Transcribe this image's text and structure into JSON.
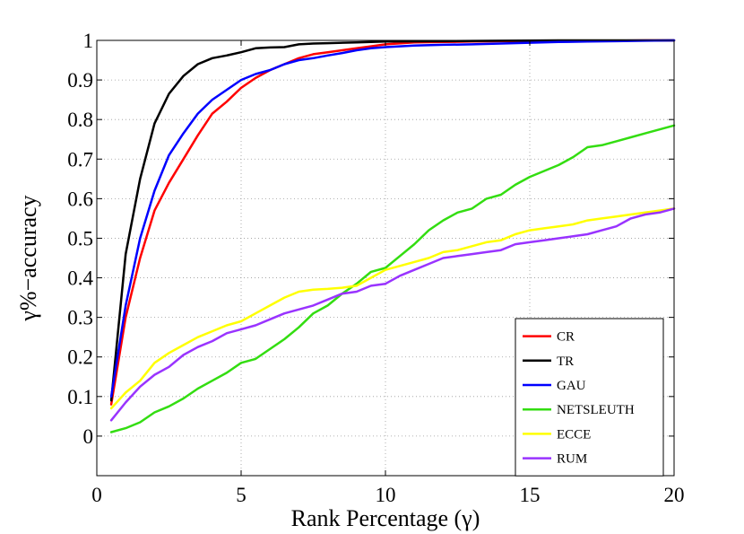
{
  "chart_data": {
    "type": "line",
    "title": "",
    "xlabel": "Rank Percentage (γ)",
    "ylabel": "γ%−accuracy",
    "xlim": [
      0,
      20
    ],
    "ylim": [
      -0.1,
      1
    ],
    "xticks": [
      0,
      5,
      10,
      15,
      20
    ],
    "yticks": [
      0,
      0.1,
      0.2,
      0.3,
      0.4,
      0.5,
      0.6,
      0.7,
      0.8,
      0.9,
      1
    ],
    "xtick_labels": [
      "0",
      "5",
      "10",
      "15",
      "20"
    ],
    "ytick_labels": [
      "0",
      "0.1",
      "0.2",
      "0.3",
      "0.4",
      "0.5",
      "0.6",
      "0.7",
      "0.8",
      "0.9",
      "1"
    ],
    "grid": true,
    "legend_position": "bottom-right",
    "series": [
      {
        "name": "CR",
        "color": "#ff0000",
        "x": [
          0.5,
          1,
          1.5,
          2,
          2.5,
          3,
          3.5,
          4,
          4.5,
          5,
          5.5,
          6,
          6.5,
          7,
          7.5,
          8,
          8.5,
          9,
          9.5,
          10,
          11,
          12,
          13,
          14,
          15,
          16,
          17,
          18,
          19,
          20
        ],
        "y": [
          0.08,
          0.3,
          0.45,
          0.57,
          0.64,
          0.7,
          0.76,
          0.815,
          0.845,
          0.88,
          0.905,
          0.925,
          0.94,
          0.955,
          0.965,
          0.97,
          0.975,
          0.98,
          0.985,
          0.99,
          0.995,
          0.996,
          0.997,
          0.998,
          0.998,
          0.999,
          0.999,
          0.999,
          1,
          1
        ]
      },
      {
        "name": "TR",
        "color": "#000000",
        "x": [
          0.5,
          1,
          1.5,
          2,
          2.5,
          3,
          3.5,
          4,
          4.5,
          5,
          5.5,
          6,
          6.5,
          7,
          7.5,
          8,
          9,
          10,
          12,
          14,
          16,
          18,
          20
        ],
        "y": [
          0.09,
          0.46,
          0.65,
          0.79,
          0.865,
          0.91,
          0.94,
          0.955,
          0.962,
          0.97,
          0.98,
          0.982,
          0.983,
          0.99,
          0.992,
          0.993,
          0.995,
          0.997,
          0.998,
          0.999,
          1,
          1,
          1
        ]
      },
      {
        "name": "GAU",
        "color": "#0000ff",
        "x": [
          0.5,
          1,
          1.5,
          2,
          2.5,
          3,
          3.5,
          4,
          4.5,
          5,
          5.5,
          6,
          6.5,
          7,
          7.5,
          8,
          8.5,
          9,
          9.5,
          10,
          11,
          12,
          13,
          14,
          15,
          16,
          17,
          18,
          19,
          20
        ],
        "y": [
          0.1,
          0.33,
          0.5,
          0.62,
          0.71,
          0.765,
          0.815,
          0.85,
          0.875,
          0.9,
          0.915,
          0.925,
          0.94,
          0.95,
          0.955,
          0.962,
          0.968,
          0.975,
          0.98,
          0.983,
          0.987,
          0.989,
          0.99,
          0.992,
          0.994,
          0.996,
          0.997,
          0.998,
          0.999,
          1
        ]
      },
      {
        "name": "NETSLEUTH",
        "color": "#33dd11",
        "x": [
          0.5,
          1,
          1.5,
          2,
          2.5,
          3,
          3.5,
          4,
          4.5,
          5,
          5.5,
          6,
          6.5,
          7,
          7.5,
          8,
          8.5,
          9,
          9.5,
          10,
          10.5,
          11,
          11.5,
          12,
          12.5,
          13,
          13.5,
          14,
          14.5,
          15,
          15.5,
          16,
          16.5,
          17,
          17.5,
          18,
          18.5,
          19,
          19.5,
          20
        ],
        "y": [
          0.01,
          0.02,
          0.035,
          0.06,
          0.075,
          0.095,
          0.12,
          0.14,
          0.16,
          0.185,
          0.195,
          0.22,
          0.245,
          0.275,
          0.31,
          0.33,
          0.36,
          0.385,
          0.415,
          0.425,
          0.455,
          0.485,
          0.52,
          0.545,
          0.565,
          0.575,
          0.6,
          0.61,
          0.635,
          0.655,
          0.67,
          0.685,
          0.705,
          0.73,
          0.735,
          0.745,
          0.755,
          0.765,
          0.775,
          0.785
        ]
      },
      {
        "name": "ECCE",
        "color": "#ffff00",
        "x": [
          0.5,
          1,
          1.5,
          2,
          2.5,
          3,
          3.5,
          4,
          4.5,
          5,
          5.5,
          6,
          6.5,
          7,
          7.5,
          8,
          8.5,
          9,
          9.5,
          10,
          10.5,
          11,
          11.5,
          12,
          12.5,
          13,
          13.5,
          14,
          14.5,
          15,
          15.5,
          16,
          16.5,
          17,
          17.5,
          18,
          18.5,
          19,
          19.5,
          20
        ],
        "y": [
          0.07,
          0.11,
          0.14,
          0.185,
          0.21,
          0.23,
          0.25,
          0.265,
          0.28,
          0.29,
          0.31,
          0.33,
          0.35,
          0.365,
          0.37,
          0.372,
          0.375,
          0.38,
          0.4,
          0.42,
          0.43,
          0.44,
          0.45,
          0.465,
          0.47,
          0.48,
          0.49,
          0.495,
          0.51,
          0.52,
          0.525,
          0.53,
          0.535,
          0.545,
          0.55,
          0.555,
          0.56,
          0.565,
          0.57,
          0.575
        ]
      },
      {
        "name": "RUM",
        "color": "#9933ff",
        "x": [
          0.5,
          1,
          1.5,
          2,
          2.5,
          3,
          3.5,
          4,
          4.5,
          5,
          5.5,
          6,
          6.5,
          7,
          7.5,
          8,
          8.5,
          9,
          9.5,
          10,
          10.5,
          11,
          11.5,
          12,
          12.5,
          13,
          13.5,
          14,
          14.5,
          15,
          15.5,
          16,
          16.5,
          17,
          17.5,
          18,
          18.5,
          19,
          19.5,
          20
        ],
        "y": [
          0.04,
          0.085,
          0.125,
          0.155,
          0.175,
          0.205,
          0.225,
          0.24,
          0.26,
          0.27,
          0.28,
          0.295,
          0.31,
          0.32,
          0.33,
          0.345,
          0.36,
          0.365,
          0.38,
          0.385,
          0.405,
          0.42,
          0.435,
          0.45,
          0.455,
          0.46,
          0.465,
          0.47,
          0.485,
          0.49,
          0.495,
          0.5,
          0.505,
          0.51,
          0.52,
          0.53,
          0.55,
          0.56,
          0.565,
          0.575
        ]
      }
    ]
  }
}
